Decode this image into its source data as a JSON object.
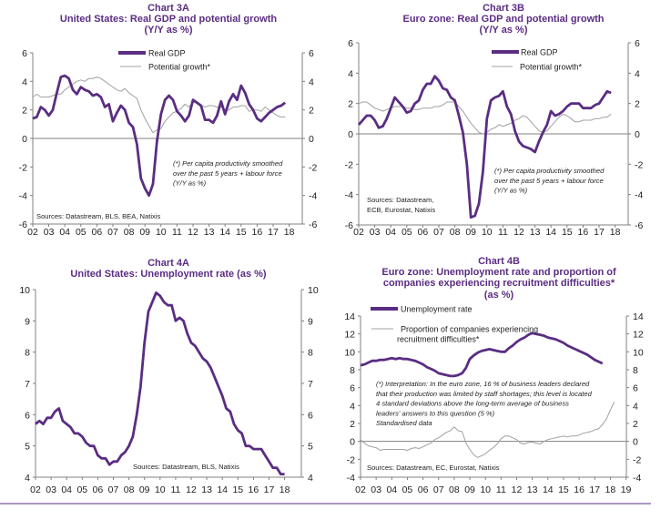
{
  "colors": {
    "primary_series": "#5a2d82",
    "secondary_series": "#a0a0a0",
    "title": "#5b2c83",
    "axis": "#808080"
  },
  "chart_data": [
    {
      "id": "chart-3a",
      "type": "line",
      "title_lines": [
        "Chart 3A",
        "United States: Real GDP and potential growth",
        "(Y/Y as %)"
      ],
      "frequency": "quarterly",
      "period_start": "2002Q1",
      "x_tick_labels": [
        "02",
        "03",
        "04",
        "05",
        "06",
        "07",
        "08",
        "09",
        "10",
        "11",
        "12",
        "13",
        "14",
        "15",
        "16",
        "17",
        "18"
      ],
      "ylim": [
        -6,
        6
      ],
      "y_ticks": [
        -6,
        -4,
        -2,
        0,
        2,
        4,
        6
      ],
      "dual_axis": true,
      "zero_line": true,
      "grid": false,
      "legend_placement": "top-center",
      "series": [
        {
          "name": "Real GDP",
          "style": "thick-purple",
          "values": [
            1.4,
            1.5,
            2.2,
            2.0,
            1.6,
            2.0,
            3.2,
            4.3,
            4.4,
            4.2,
            3.4,
            3.1,
            3.6,
            3.4,
            3.3,
            3.0,
            3.1,
            2.9,
            2.2,
            2.4,
            1.2,
            1.8,
            2.3,
            2.0,
            1.1,
            0.8,
            -0.4,
            -2.8,
            -3.5,
            -4.0,
            -3.2,
            -0.2,
            1.7,
            2.7,
            3.0,
            2.7,
            1.9,
            1.6,
            1.2,
            1.6,
            2.7,
            2.5,
            2.3,
            1.3,
            1.3,
            1.1,
            1.6,
            2.6,
            1.7,
            2.6,
            3.1,
            2.7,
            3.7,
            3.2,
            2.4,
            2.0,
            1.4,
            1.2,
            1.5,
            1.8,
            2.0,
            2.2,
            2.3,
            2.5
          ]
        },
        {
          "name": "Potential growth*",
          "style": "thin-grey",
          "values": [
            2.9,
            3.1,
            2.9,
            2.9,
            2.9,
            3.0,
            3.1,
            3.1,
            3.4,
            3.6,
            3.8,
            4.0,
            4.1,
            4.0,
            4.2,
            4.2,
            4.3,
            4.2,
            4.0,
            3.8,
            3.6,
            3.4,
            3.3,
            3.5,
            3.2,
            3.0,
            2.8,
            2.0,
            1.4,
            0.9,
            0.4,
            0.6,
            0.7,
            1.2,
            1.5,
            1.8,
            1.9,
            2.1,
            2.4,
            2.2,
            2.6,
            2.5,
            2.3,
            2.2,
            2.3,
            2.3,
            2.2,
            2.2,
            2.0,
            2.0,
            2.2,
            2.2,
            2.3,
            2.3,
            1.9,
            2.0,
            2.0,
            1.9,
            2.2,
            2.0,
            1.8,
            1.6,
            1.5,
            1.5
          ]
        }
      ],
      "note_lines": [
        "(*) Per capita productivity smoothed",
        "over the past 5 years + labour force",
        "(Y/Y as %)"
      ],
      "source_lines": [
        "Sources: Datastream, BLS, BEA, Natixis"
      ]
    },
    {
      "id": "chart-3b",
      "type": "line",
      "title_lines": [
        "Chart 3B",
        "Euro zone: Real GDP and potential growth",
        "(Y/Y as %)"
      ],
      "frequency": "quarterly",
      "period_start": "2002Q1",
      "x_tick_labels": [
        "02",
        "03",
        "04",
        "05",
        "06",
        "07",
        "08",
        "09",
        "10",
        "11",
        "12",
        "13",
        "14",
        "15",
        "16",
        "17",
        "18"
      ],
      "ylim": [
        -6,
        6
      ],
      "y_ticks": [
        -6,
        -4,
        -2,
        0,
        2,
        4,
        6
      ],
      "dual_axis": true,
      "zero_line": true,
      "grid": false,
      "legend_placement": "top-right",
      "series": [
        {
          "name": "Real GDP",
          "style": "thick-purple",
          "values": [
            0.6,
            0.9,
            1.2,
            1.2,
            0.9,
            0.4,
            0.5,
            1.0,
            1.7,
            2.4,
            2.1,
            1.8,
            1.4,
            1.5,
            2.0,
            2.2,
            2.9,
            3.3,
            3.3,
            3.8,
            3.5,
            3.0,
            2.9,
            2.4,
            2.2,
            1.2,
            0.1,
            -2.0,
            -5.5,
            -5.4,
            -4.6,
            -2.5,
            1.0,
            2.2,
            2.4,
            2.5,
            2.8,
            1.8,
            1.3,
            0.2,
            -0.5,
            -0.8,
            -0.9,
            -1.0,
            -1.2,
            -0.5,
            0.1,
            0.6,
            1.5,
            1.2,
            1.3,
            1.5,
            1.8,
            2.0,
            2.0,
            2.0,
            1.7,
            1.7,
            1.7,
            1.9,
            2.0,
            2.4,
            2.8,
            2.7
          ]
        },
        {
          "name": "Potential growth*",
          "style": "thin-grey",
          "values": [
            2.0,
            2.1,
            2.1,
            1.9,
            1.7,
            1.6,
            1.5,
            1.6,
            1.7,
            1.8,
            1.8,
            1.8,
            1.7,
            1.7,
            1.6,
            1.6,
            1.7,
            1.7,
            1.7,
            1.8,
            1.8,
            1.9,
            2.1,
            2.1,
            2.1,
            1.8,
            1.5,
            1.1,
            0.7,
            0.4,
            0.1,
            0.0,
            0.1,
            0.3,
            0.4,
            0.6,
            0.5,
            0.6,
            0.7,
            0.9,
            1.0,
            1.2,
            1.1,
            0.8,
            0.5,
            0.2,
            0.1,
            0.2,
            0.5,
            0.8,
            1.1,
            1.3,
            1.2,
            1.0,
            0.8,
            0.8,
            0.9,
            0.9,
            0.9,
            1.0,
            1.0,
            1.1,
            1.1,
            1.3
          ]
        }
      ],
      "note_lines": [
        "(*) Per capita productivity smoothed",
        "over the past 5 years + labour force",
        "(Y/Y as %)"
      ],
      "source_lines": [
        "Sources: Datastream,",
        "ECB, Eurostat, Natixis"
      ]
    },
    {
      "id": "chart-4a",
      "type": "line",
      "title_lines": [
        "Chart 4A",
        "United States: Unemployment rate (as %)"
      ],
      "frequency": "quarterly",
      "period_start": "2002Q1",
      "x_tick_labels": [
        "02",
        "03",
        "04",
        "05",
        "06",
        "07",
        "08",
        "09",
        "10",
        "11",
        "12",
        "13",
        "14",
        "15",
        "16",
        "17",
        "18"
      ],
      "ylim": [
        4,
        10
      ],
      "y_ticks": [
        4,
        5,
        6,
        7,
        8,
        9,
        10
      ],
      "dual_axis": true,
      "zero_line": false,
      "grid": false,
      "series": [
        {
          "style": "thick-purple",
          "values": [
            5.7,
            5.8,
            5.7,
            5.9,
            5.9,
            6.1,
            6.2,
            5.8,
            5.7,
            5.6,
            5.4,
            5.4,
            5.3,
            5.1,
            5.0,
            5.0,
            4.7,
            4.6,
            4.6,
            4.4,
            4.5,
            4.5,
            4.7,
            4.8,
            5.0,
            5.3,
            6.0,
            6.9,
            8.3,
            9.3,
            9.6,
            9.9,
            9.8,
            9.6,
            9.5,
            9.5,
            9.0,
            9.1,
            9.0,
            8.6,
            8.3,
            8.2,
            8.0,
            7.8,
            7.7,
            7.5,
            7.2,
            6.9,
            6.6,
            6.2,
            6.1,
            5.7,
            5.5,
            5.4,
            5.0,
            5.0,
            4.9,
            4.9,
            4.9,
            4.7,
            4.5,
            4.3,
            4.3,
            4.1,
            4.1
          ]
        }
      ],
      "source_lines": [
        "Sources: Datastream, BLS, Natixis"
      ]
    },
    {
      "id": "chart-4b",
      "type": "line",
      "title_lines": [
        "Chart 4B",
        "Euro zone: Unemployment rate and proportion of",
        "companies experiencing recruitment difficulties*",
        "(as %)"
      ],
      "frequency": "quarterly",
      "period_start": "2002Q1",
      "x_tick_labels": [
        "02",
        "03",
        "04",
        "05",
        "06",
        "07",
        "08",
        "09",
        "10",
        "11",
        "12",
        "13",
        "14",
        "15",
        "16",
        "17",
        "18",
        "19"
      ],
      "ylim": [
        -4,
        14
      ],
      "y_ticks": [
        -4,
        -2,
        0,
        2,
        4,
        6,
        8,
        10,
        12,
        14
      ],
      "dual_axis": true,
      "zero_line": true,
      "grid": false,
      "legend_placement": "top-left",
      "series": [
        {
          "name": "Unemployment rate",
          "style": "thick-purple",
          "values": [
            8.5,
            8.6,
            8.8,
            9.0,
            9.0,
            9.1,
            9.1,
            9.2,
            9.3,
            9.2,
            9.3,
            9.2,
            9.2,
            9.1,
            9.0,
            8.8,
            8.6,
            8.3,
            8.1,
            7.9,
            7.6,
            7.5,
            7.4,
            7.3,
            7.3,
            7.4,
            7.6,
            8.2,
            9.2,
            9.6,
            9.9,
            10.1,
            10.2,
            10.3,
            10.2,
            10.1,
            10.0,
            10.0,
            10.4,
            10.7,
            11.1,
            11.4,
            11.6,
            11.9,
            12.1,
            12.0,
            11.9,
            11.8,
            11.6,
            11.5,
            11.4,
            11.2,
            11.0,
            10.7,
            10.5,
            10.3,
            10.1,
            9.9,
            9.7,
            9.4,
            9.1,
            8.9,
            8.7
          ]
        },
        {
          "name_lines": [
            "Proportion of companies experiencing",
            "recruitment difficulties*"
          ],
          "style": "thin-grey",
          "values": [
            0.2,
            -0.2,
            -0.5,
            -0.6,
            -0.7,
            -1.0,
            -0.9,
            -0.9,
            -0.9,
            -0.9,
            -0.9,
            -0.9,
            -1.0,
            -0.8,
            -0.7,
            -0.8,
            -0.6,
            -0.4,
            -0.2,
            0.2,
            0.4,
            0.7,
            1.0,
            1.2,
            1.6,
            1.2,
            1.1,
            -0.2,
            -0.9,
            -1.5,
            -1.8,
            -1.6,
            -1.4,
            -1.0,
            -0.7,
            -0.3,
            0.3,
            0.6,
            0.6,
            0.4,
            0.2,
            -0.2,
            -0.3,
            -0.1,
            -0.1,
            -0.2,
            -0.3,
            0.0,
            0.2,
            0.3,
            0.4,
            0.5,
            0.6,
            0.5,
            0.6,
            0.6,
            0.7,
            0.9,
            1.0,
            1.1,
            1.3,
            1.4,
            1.9,
            2.5,
            3.5,
            4.4
          ]
        }
      ],
      "note_lines": [
        "(*) Interpretation: In the euro zone, 16 % of business leaders declared",
        "that their production was limited by staff shortages; this level is located",
        "4 standard deviations above the long-term average of business",
        "leaders' answers to this question (5 %)",
        "Standardised data"
      ],
      "source_lines": [
        "Sources: Datastream, EC, Eurostat, Natixis"
      ]
    }
  ]
}
